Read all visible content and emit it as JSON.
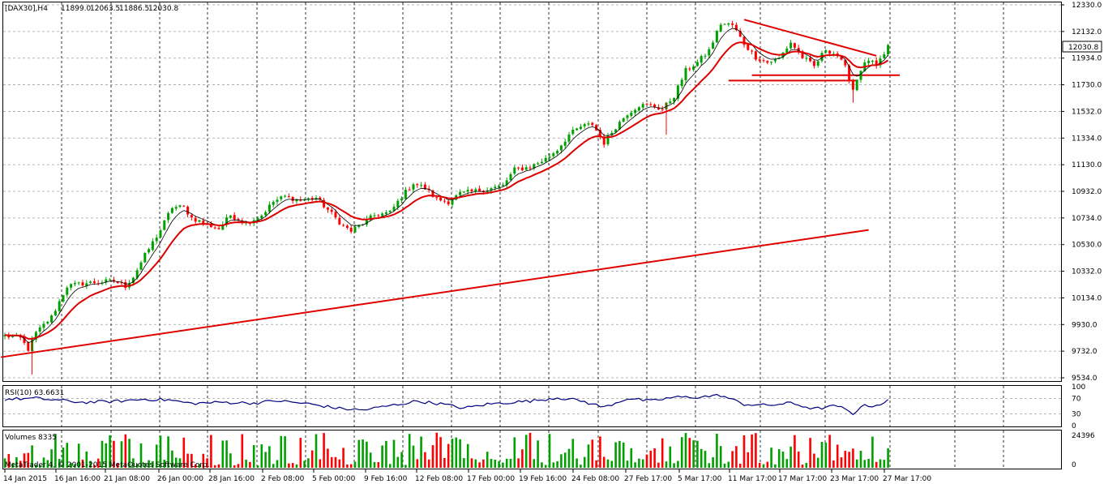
{
  "chart_data": {
    "type": "candlestick",
    "header": {
      "symbol": "[DAX30],H4",
      "values": [
        "11899.0",
        "12063.5",
        "11886.5",
        "12030.8"
      ]
    },
    "price_axis": {
      "ticks": [
        "12330.0",
        "12132.0",
        "11934.0",
        "11730.0",
        "11532.0",
        "11334.0",
        "11130.0",
        "10932.0",
        "10734.0",
        "10530.0",
        "10332.0",
        "10134.0",
        "9930.0",
        "9732.0",
        "9534.0"
      ],
      "range": [
        9534,
        12330
      ],
      "current_price": "12030.8"
    },
    "time_axis": {
      "labels": [
        "14 Jan 2015",
        "16 Jan 16:00",
        "21 Jan 08:00",
        "26 Jan 00:00",
        "28 Jan 16:00",
        "2 Feb 08:00",
        "5 Feb 00:00",
        "9 Feb 16:00",
        "12 Feb 08:00",
        "17 Feb 00:00",
        "19 Feb 16:00",
        "24 Feb 08:00",
        "27 Feb 17:00",
        "5 Mar 17:00",
        "11 Mar 17:00",
        "17 Mar 17:00",
        "23 Mar 17:00",
        "27 Mar 17:00"
      ]
    },
    "price_anchors": [
      [
        0,
        9860
      ],
      [
        4,
        9840
      ],
      [
        6,
        9760
      ],
      [
        8,
        9880
      ],
      [
        12,
        10000
      ],
      [
        16,
        10230
      ],
      [
        20,
        10250
      ],
      [
        24,
        10260
      ],
      [
        28,
        10270
      ],
      [
        31,
        10230
      ],
      [
        33,
        10300
      ],
      [
        36,
        10460
      ],
      [
        40,
        10650
      ],
      [
        43,
        10820
      ],
      [
        46,
        10820
      ],
      [
        48,
        10740
      ],
      [
        52,
        10690
      ],
      [
        55,
        10660
      ],
      [
        58,
        10760
      ],
      [
        62,
        10700
      ],
      [
        66,
        10760
      ],
      [
        69,
        10860
      ],
      [
        72,
        10900
      ],
      [
        76,
        10870
      ],
      [
        80,
        10890
      ],
      [
        83,
        10800
      ],
      [
        87,
        10680
      ],
      [
        89,
        10640
      ],
      [
        92,
        10700
      ],
      [
        95,
        10760
      ],
      [
        99,
        10780
      ],
      [
        102,
        10900
      ],
      [
        105,
        11000
      ],
      [
        108,
        10960
      ],
      [
        111,
        10880
      ],
      [
        114,
        10860
      ],
      [
        117,
        10920
      ],
      [
        121,
        10940
      ],
      [
        125,
        10960
      ],
      [
        128,
        10980
      ],
      [
        131,
        11100
      ],
      [
        135,
        11120
      ],
      [
        139,
        11180
      ],
      [
        142,
        11250
      ],
      [
        145,
        11360
      ],
      [
        148,
        11420
      ],
      [
        151,
        11440
      ],
      [
        154,
        11300
      ],
      [
        157,
        11420
      ],
      [
        160,
        11520
      ],
      [
        163,
        11580
      ],
      [
        166,
        11580
      ],
      [
        169,
        11550
      ],
      [
        172,
        11650
      ],
      [
        175,
        11840
      ],
      [
        178,
        11900
      ],
      [
        181,
        11990
      ],
      [
        184,
        12190
      ],
      [
        187,
        12180
      ],
      [
        190,
        12040
      ],
      [
        193,
        11940
      ],
      [
        196,
        11900
      ],
      [
        199,
        11930
      ],
      [
        202,
        12050
      ],
      [
        205,
        11940
      ],
      [
        208,
        11870
      ],
      [
        211,
        12000
      ],
      [
        214,
        11950
      ],
      [
        216,
        11860
      ],
      [
        218,
        11700
      ],
      [
        220,
        11850
      ],
      [
        222,
        11920
      ],
      [
        224,
        11870
      ],
      [
        226,
        11950
      ],
      [
        227,
        12030
      ]
    ],
    "trendlines": [
      {
        "name": "support-line",
        "from": [
          -1,
          9700
        ],
        "to": [
          222,
          10650
        ]
      },
      {
        "name": "resistance-line",
        "from": [
          190,
          12220
        ],
        "to": [
          224,
          11950
        ]
      },
      {
        "name": "support-level-1",
        "from": [
          192,
          11805
        ],
        "to": [
          230,
          11805
        ]
      },
      {
        "name": "support-level-2",
        "from": [
          186,
          11765
        ],
        "to": [
          219,
          11765
        ]
      }
    ],
    "rsi": {
      "label": "RSI(10) 63.6631",
      "levels": [
        "100",
        "70",
        "30",
        "0"
      ],
      "range": [
        0,
        100
      ],
      "anchors": [
        [
          0,
          68
        ],
        [
          8,
          70
        ],
        [
          14,
          65
        ],
        [
          20,
          60
        ],
        [
          28,
          62
        ],
        [
          36,
          68
        ],
        [
          42,
          66
        ],
        [
          48,
          57
        ],
        [
          56,
          60
        ],
        [
          64,
          58
        ],
        [
          70,
          64
        ],
        [
          78,
          56
        ],
        [
          86,
          44
        ],
        [
          92,
          40
        ],
        [
          100,
          53
        ],
        [
          106,
          63
        ],
        [
          112,
          56
        ],
        [
          118,
          45
        ],
        [
          124,
          55
        ],
        [
          130,
          60
        ],
        [
          136,
          64
        ],
        [
          142,
          72
        ],
        [
          148,
          64
        ],
        [
          154,
          47
        ],
        [
          160,
          70
        ],
        [
          166,
          63
        ],
        [
          172,
          73
        ],
        [
          178,
          73
        ],
        [
          184,
          78
        ],
        [
          190,
          55
        ],
        [
          196,
          52
        ],
        [
          202,
          58
        ],
        [
          208,
          43
        ],
        [
          214,
          51
        ],
        [
          218,
          30
        ],
        [
          220,
          50
        ],
        [
          224,
          52
        ],
        [
          227,
          64
        ]
      ]
    },
    "volume": {
      "label": "Volumes 8335",
      "ticks": [
        "24396",
        "0"
      ],
      "range": [
        0,
        24396
      ]
    },
    "watermark": "MetaTrader 4, © 2001-2015 MetaQuotes Software Corp.",
    "colors": {
      "bull": "#00a000",
      "bear": "#ff0000",
      "ma_fast": "#000000",
      "ma_slow": "#dd0000",
      "trendline": "#e00000",
      "rsi": "#000080",
      "grid": "#a0a0a0"
    }
  }
}
